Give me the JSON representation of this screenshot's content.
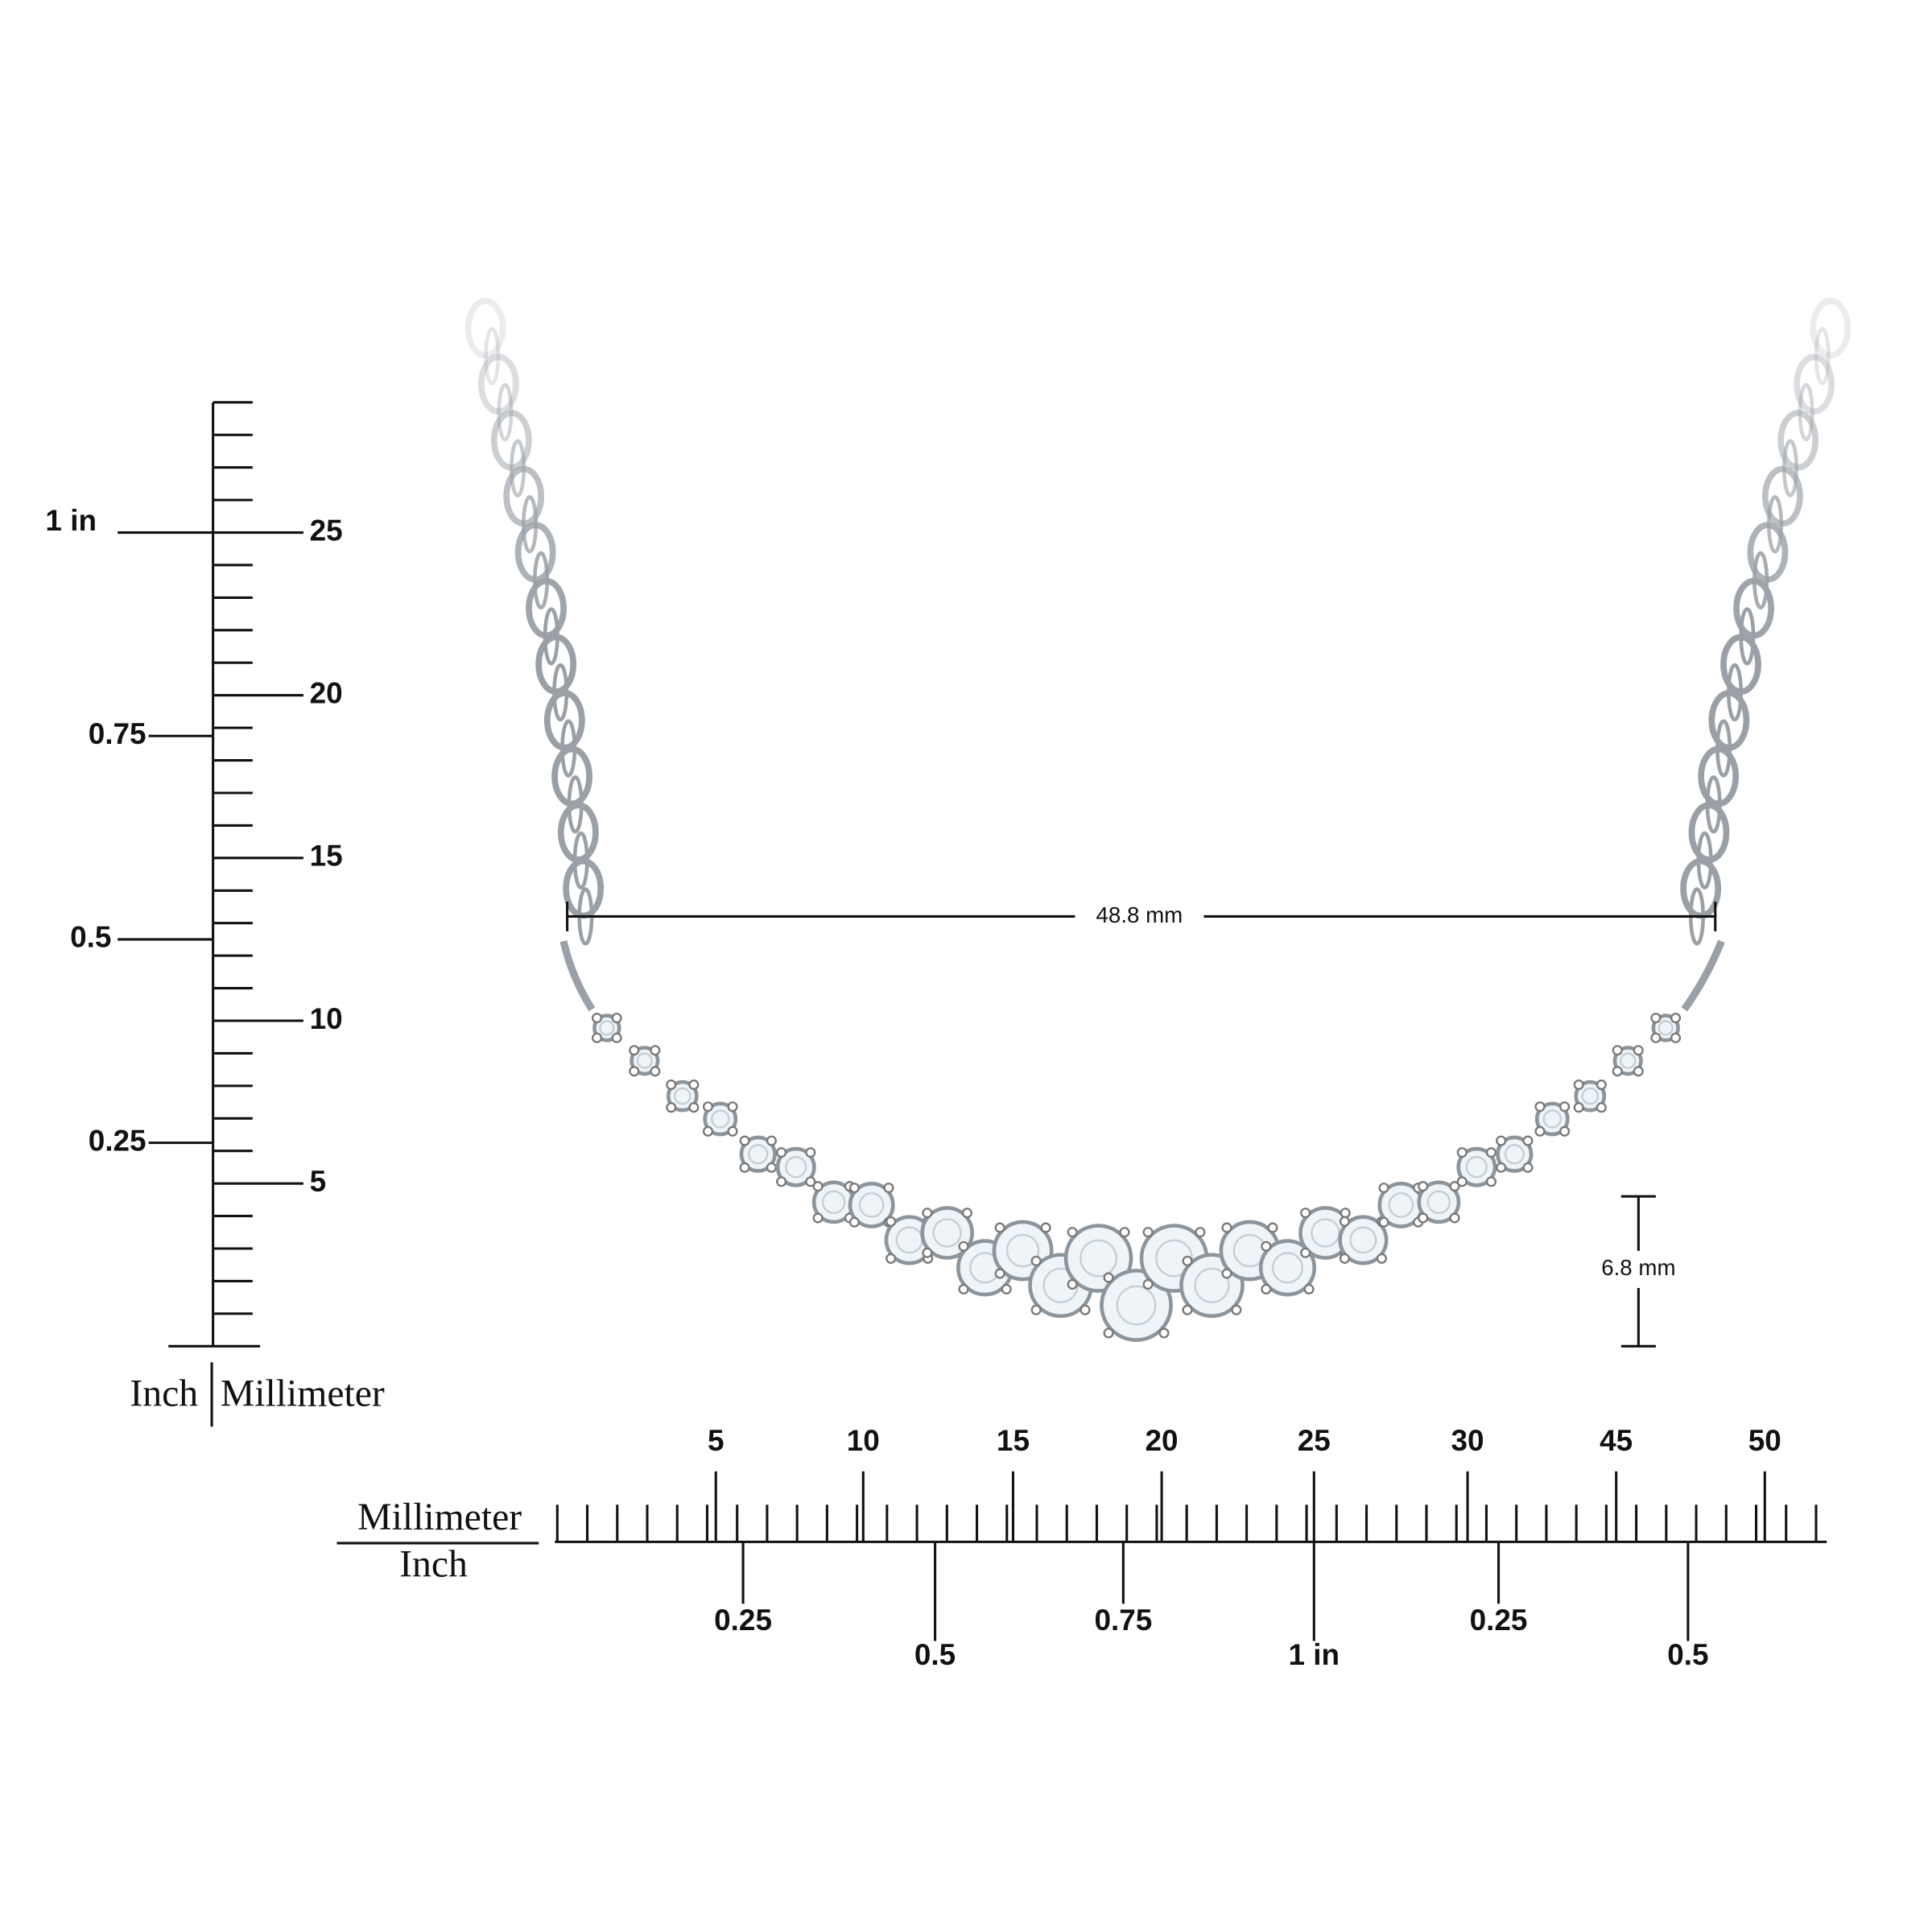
{
  "vertical_ruler": {
    "inch_labels": [
      "1 in",
      "0.75",
      "0.5",
      "0.25"
    ],
    "mm_labels": [
      "25",
      "20",
      "15",
      "10",
      "5"
    ],
    "unit_labels": [
      "Inch",
      "Millimeter"
    ]
  },
  "horizontal_ruler": {
    "mm_labels": [
      "5",
      "10",
      "15",
      "20",
      "25",
      "30",
      "45",
      "50"
    ],
    "inch_labels": [
      "0.25",
      "0.5",
      "0.75",
      "1 in",
      "0.25",
      "0.5"
    ],
    "unit_labels": [
      "Millimeter",
      "Inch"
    ]
  },
  "dimensions": {
    "width": "48.8 mm",
    "height": "6.8 mm"
  }
}
